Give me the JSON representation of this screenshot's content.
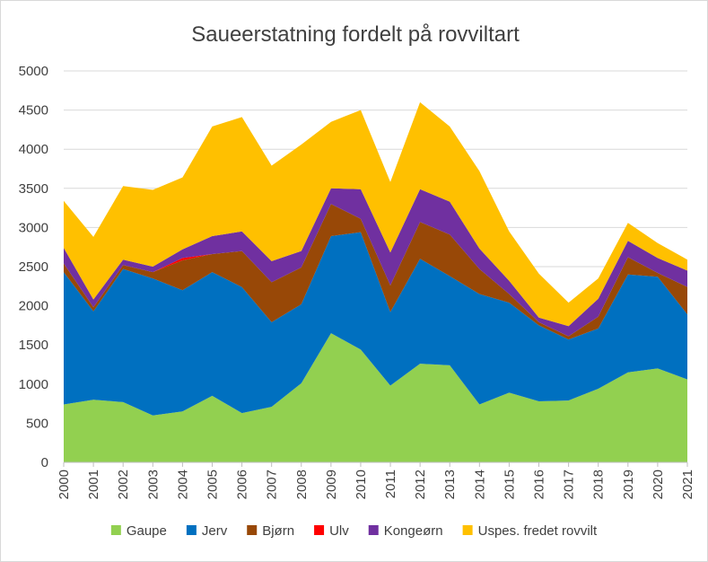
{
  "chart_data": {
    "type": "area",
    "stacked": true,
    "title": "Saueerstatning fordelt på rovviltart",
    "xlabel": "",
    "ylabel": "",
    "ylim": [
      0,
      5000
    ],
    "y_ticks": [
      0,
      500,
      1000,
      1500,
      2000,
      2500,
      3000,
      3500,
      4000,
      4500,
      5000
    ],
    "grid": true,
    "legend_position": "bottom",
    "x": [
      "2000",
      "2001",
      "2002",
      "2003",
      "2004",
      "2005",
      "2006",
      "2007",
      "2008",
      "2009",
      "2010",
      "2011",
      "2012",
      "2013",
      "2014",
      "2015",
      "2016",
      "2017",
      "2018",
      "2019",
      "2020",
      "2021"
    ],
    "series": [
      {
        "name": "Gaupe",
        "color": "#92d050",
        "values": [
          740,
          800,
          770,
          600,
          650,
          850,
          630,
          710,
          1010,
          1650,
          1440,
          980,
          1260,
          1240,
          740,
          890,
          780,
          790,
          940,
          1150,
          1200,
          1060
        ]
      },
      {
        "name": "Jerv",
        "color": "#0070c0",
        "values": [
          1690,
          1130,
          1700,
          1750,
          1550,
          1580,
          1610,
          1080,
          1010,
          1240,
          1500,
          940,
          1340,
          1140,
          1410,
          1150,
          970,
          780,
          770,
          1250,
          1170,
          830
        ]
      },
      {
        "name": "Bjørn",
        "color": "#984807",
        "values": [
          110,
          50,
          50,
          80,
          380,
          230,
          460,
          510,
          470,
          410,
          170,
          340,
          470,
          530,
          320,
          110,
          40,
          40,
          150,
          220,
          50,
          350
        ]
      },
      {
        "name": "Ulv",
        "color": "#ff0000",
        "values": [
          0,
          0,
          0,
          0,
          30,
          0,
          0,
          0,
          0,
          0,
          0,
          0,
          0,
          0,
          0,
          0,
          0,
          0,
          0,
          0,
          0,
          0
        ]
      },
      {
        "name": "Kongeørn",
        "color": "#7030a0",
        "values": [
          200,
          100,
          70,
          70,
          110,
          230,
          250,
          270,
          210,
          200,
          380,
          420,
          420,
          420,
          260,
          170,
          60,
          130,
          230,
          210,
          190,
          210
        ]
      },
      {
        "name": "Uspes. fredet rovvilt",
        "color": "#ffc000",
        "values": [
          600,
          800,
          940,
          980,
          920,
          1400,
          1460,
          1220,
          1360,
          850,
          1010,
          900,
          1110,
          960,
          990,
          630,
          560,
          300,
          260,
          230,
          190,
          140
        ]
      }
    ]
  }
}
